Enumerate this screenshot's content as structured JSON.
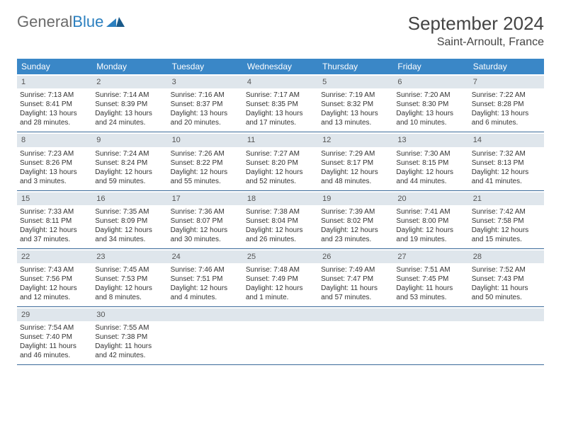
{
  "logo": {
    "text1": "General",
    "text2": "Blue"
  },
  "title": "September 2024",
  "location": "Saint-Arnoult, France",
  "colors": {
    "header_bg": "#3a87c7",
    "header_text": "#ffffff",
    "daynum_bg": "#dfe6ec",
    "week_border": "#3a6a99",
    "body_text": "#333333",
    "logo_gray": "#6a6a6a",
    "logo_blue": "#2b7fbf"
  },
  "weekdays": [
    "Sunday",
    "Monday",
    "Tuesday",
    "Wednesday",
    "Thursday",
    "Friday",
    "Saturday"
  ],
  "weeks": [
    [
      {
        "n": "1",
        "sunrise": "Sunrise: 7:13 AM",
        "sunset": "Sunset: 8:41 PM",
        "daylight": "Daylight: 13 hours and 28 minutes."
      },
      {
        "n": "2",
        "sunrise": "Sunrise: 7:14 AM",
        "sunset": "Sunset: 8:39 PM",
        "daylight": "Daylight: 13 hours and 24 minutes."
      },
      {
        "n": "3",
        "sunrise": "Sunrise: 7:16 AM",
        "sunset": "Sunset: 8:37 PM",
        "daylight": "Daylight: 13 hours and 20 minutes."
      },
      {
        "n": "4",
        "sunrise": "Sunrise: 7:17 AM",
        "sunset": "Sunset: 8:35 PM",
        "daylight": "Daylight: 13 hours and 17 minutes."
      },
      {
        "n": "5",
        "sunrise": "Sunrise: 7:19 AM",
        "sunset": "Sunset: 8:32 PM",
        "daylight": "Daylight: 13 hours and 13 minutes."
      },
      {
        "n": "6",
        "sunrise": "Sunrise: 7:20 AM",
        "sunset": "Sunset: 8:30 PM",
        "daylight": "Daylight: 13 hours and 10 minutes."
      },
      {
        "n": "7",
        "sunrise": "Sunrise: 7:22 AM",
        "sunset": "Sunset: 8:28 PM",
        "daylight": "Daylight: 13 hours and 6 minutes."
      }
    ],
    [
      {
        "n": "8",
        "sunrise": "Sunrise: 7:23 AM",
        "sunset": "Sunset: 8:26 PM",
        "daylight": "Daylight: 13 hours and 3 minutes."
      },
      {
        "n": "9",
        "sunrise": "Sunrise: 7:24 AM",
        "sunset": "Sunset: 8:24 PM",
        "daylight": "Daylight: 12 hours and 59 minutes."
      },
      {
        "n": "10",
        "sunrise": "Sunrise: 7:26 AM",
        "sunset": "Sunset: 8:22 PM",
        "daylight": "Daylight: 12 hours and 55 minutes."
      },
      {
        "n": "11",
        "sunrise": "Sunrise: 7:27 AM",
        "sunset": "Sunset: 8:20 PM",
        "daylight": "Daylight: 12 hours and 52 minutes."
      },
      {
        "n": "12",
        "sunrise": "Sunrise: 7:29 AM",
        "sunset": "Sunset: 8:17 PM",
        "daylight": "Daylight: 12 hours and 48 minutes."
      },
      {
        "n": "13",
        "sunrise": "Sunrise: 7:30 AM",
        "sunset": "Sunset: 8:15 PM",
        "daylight": "Daylight: 12 hours and 44 minutes."
      },
      {
        "n": "14",
        "sunrise": "Sunrise: 7:32 AM",
        "sunset": "Sunset: 8:13 PM",
        "daylight": "Daylight: 12 hours and 41 minutes."
      }
    ],
    [
      {
        "n": "15",
        "sunrise": "Sunrise: 7:33 AM",
        "sunset": "Sunset: 8:11 PM",
        "daylight": "Daylight: 12 hours and 37 minutes."
      },
      {
        "n": "16",
        "sunrise": "Sunrise: 7:35 AM",
        "sunset": "Sunset: 8:09 PM",
        "daylight": "Daylight: 12 hours and 34 minutes."
      },
      {
        "n": "17",
        "sunrise": "Sunrise: 7:36 AM",
        "sunset": "Sunset: 8:07 PM",
        "daylight": "Daylight: 12 hours and 30 minutes."
      },
      {
        "n": "18",
        "sunrise": "Sunrise: 7:38 AM",
        "sunset": "Sunset: 8:04 PM",
        "daylight": "Daylight: 12 hours and 26 minutes."
      },
      {
        "n": "19",
        "sunrise": "Sunrise: 7:39 AM",
        "sunset": "Sunset: 8:02 PM",
        "daylight": "Daylight: 12 hours and 23 minutes."
      },
      {
        "n": "20",
        "sunrise": "Sunrise: 7:41 AM",
        "sunset": "Sunset: 8:00 PM",
        "daylight": "Daylight: 12 hours and 19 minutes."
      },
      {
        "n": "21",
        "sunrise": "Sunrise: 7:42 AM",
        "sunset": "Sunset: 7:58 PM",
        "daylight": "Daylight: 12 hours and 15 minutes."
      }
    ],
    [
      {
        "n": "22",
        "sunrise": "Sunrise: 7:43 AM",
        "sunset": "Sunset: 7:56 PM",
        "daylight": "Daylight: 12 hours and 12 minutes."
      },
      {
        "n": "23",
        "sunrise": "Sunrise: 7:45 AM",
        "sunset": "Sunset: 7:53 PM",
        "daylight": "Daylight: 12 hours and 8 minutes."
      },
      {
        "n": "24",
        "sunrise": "Sunrise: 7:46 AM",
        "sunset": "Sunset: 7:51 PM",
        "daylight": "Daylight: 12 hours and 4 minutes."
      },
      {
        "n": "25",
        "sunrise": "Sunrise: 7:48 AM",
        "sunset": "Sunset: 7:49 PM",
        "daylight": "Daylight: 12 hours and 1 minute."
      },
      {
        "n": "26",
        "sunrise": "Sunrise: 7:49 AM",
        "sunset": "Sunset: 7:47 PM",
        "daylight": "Daylight: 11 hours and 57 minutes."
      },
      {
        "n": "27",
        "sunrise": "Sunrise: 7:51 AM",
        "sunset": "Sunset: 7:45 PM",
        "daylight": "Daylight: 11 hours and 53 minutes."
      },
      {
        "n": "28",
        "sunrise": "Sunrise: 7:52 AM",
        "sunset": "Sunset: 7:43 PM",
        "daylight": "Daylight: 11 hours and 50 minutes."
      }
    ],
    [
      {
        "n": "29",
        "sunrise": "Sunrise: 7:54 AM",
        "sunset": "Sunset: 7:40 PM",
        "daylight": "Daylight: 11 hours and 46 minutes."
      },
      {
        "n": "30",
        "sunrise": "Sunrise: 7:55 AM",
        "sunset": "Sunset: 7:38 PM",
        "daylight": "Daylight: 11 hours and 42 minutes."
      },
      {
        "n": "",
        "sunrise": "",
        "sunset": "",
        "daylight": ""
      },
      {
        "n": "",
        "sunrise": "",
        "sunset": "",
        "daylight": ""
      },
      {
        "n": "",
        "sunrise": "",
        "sunset": "",
        "daylight": ""
      },
      {
        "n": "",
        "sunrise": "",
        "sunset": "",
        "daylight": ""
      },
      {
        "n": "",
        "sunrise": "",
        "sunset": "",
        "daylight": ""
      }
    ]
  ]
}
